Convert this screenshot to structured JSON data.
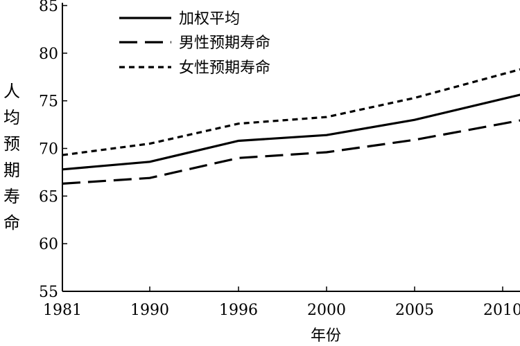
{
  "chart_data": {
    "type": "line",
    "title": "",
    "xlabel": "年份",
    "ylabel": "人均预期寿命",
    "categories": [
      "1981",
      "1990",
      "1996",
      "2000",
      "2005",
      "2010"
    ],
    "ylim": [
      55,
      85
    ],
    "yticks": [
      55,
      60,
      65,
      70,
      75,
      80,
      85
    ],
    "grid": false,
    "legend_position": "top-left",
    "series": [
      {
        "name": "加权平均",
        "style": "solid",
        "values": [
          67.8,
          68.6,
          70.8,
          71.4,
          73.0,
          75.2
        ]
      },
      {
        "name": "男性预期寿命",
        "style": "long-dash",
        "values": [
          66.3,
          66.9,
          69.0,
          69.6,
          70.9,
          72.6
        ]
      },
      {
        "name": "女性预期寿命",
        "style": "short-dash",
        "values": [
          69.3,
          70.5,
          72.6,
          73.3,
          75.3,
          77.8
        ]
      }
    ]
  }
}
